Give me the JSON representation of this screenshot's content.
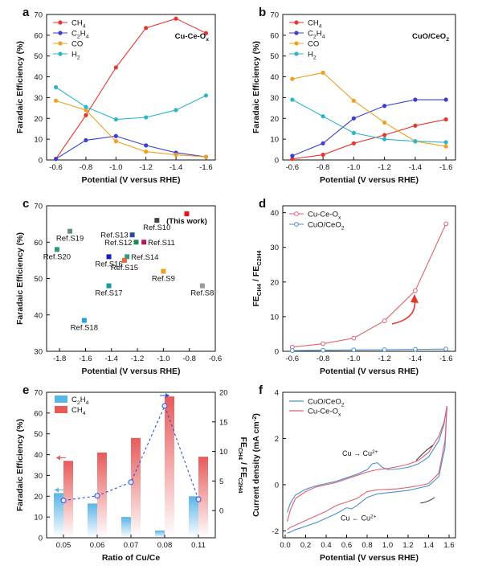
{
  "colors": {
    "ch4": "#e8342b",
    "c2h4": "#3a3fcf",
    "co": "#f0a020",
    "h2": "#2ab6c8",
    "cuceox": "#e06070",
    "cuoceo2": "#4a8fd0",
    "bar_c2h4": "#5ab4e6",
    "bar_ch4": "#e85a5a",
    "ratio_line": "#3050d8"
  },
  "chart_data": [
    {
      "id": "a",
      "type": "line",
      "panel_label": "a",
      "annotation": "Cu-Ce-Ox",
      "x": [
        -0.6,
        -0.8,
        -1.0,
        -1.2,
        -1.4,
        -1.6
      ],
      "x_ticks": [
        "-0.6",
        "-0.8",
        "-1.0",
        "-1.2",
        "-1.4",
        "-1.6"
      ],
      "y_ticks": [
        "0",
        "10",
        "20",
        "30",
        "40",
        "50",
        "60",
        "70"
      ],
      "ylim": [
        0,
        70
      ],
      "xlabel": "Potential (V versus RHE)",
      "ylabel": "Faradaic Efficiency (%)",
      "series": [
        {
          "name": "CH4",
          "color_key": "ch4",
          "values": [
            0.5,
            21.5,
            44.5,
            63.5,
            68,
            61
          ]
        },
        {
          "name": "C2H4",
          "color_key": "c2h4",
          "values": [
            0.5,
            9.5,
            11.5,
            7,
            3.5,
            1.5
          ]
        },
        {
          "name": "CO",
          "color_key": "co",
          "values": [
            28.5,
            24,
            9,
            4,
            2.5,
            1.5
          ]
        },
        {
          "name": "H2",
          "color_key": "h2",
          "values": [
            35,
            25.5,
            19.5,
            20.5,
            24,
            31
          ]
        }
      ]
    },
    {
      "id": "b",
      "type": "line",
      "panel_label": "b",
      "annotation": "CuO/CeO2",
      "x": [
        -0.6,
        -0.8,
        -1.0,
        -1.2,
        -1.4,
        -1.6
      ],
      "x_ticks": [
        "-0.6",
        "-0.8",
        "-1.0",
        "-1.2",
        "-1.4",
        "-1.6"
      ],
      "y_ticks": [
        "0",
        "10",
        "20",
        "30",
        "40",
        "50",
        "60",
        "70"
      ],
      "ylim": [
        0,
        70
      ],
      "xlabel": "Potential (V versus RHE)",
      "ylabel": "Faradaic Efficiency (%)",
      "series": [
        {
          "name": "CH4",
          "color_key": "ch4",
          "values": [
            0.5,
            2.5,
            8,
            12,
            16.5,
            19.5
          ]
        },
        {
          "name": "C2H4",
          "color_key": "c2h4",
          "values": [
            2,
            8,
            20,
            26,
            29,
            29
          ]
        },
        {
          "name": "CO",
          "color_key": "co",
          "values": [
            39,
            42,
            28.5,
            18,
            9,
            6.5
          ]
        },
        {
          "name": "H2",
          "color_key": "h2",
          "values": [
            29,
            21,
            13,
            10,
            9,
            8.5
          ]
        }
      ]
    },
    {
      "id": "c",
      "type": "scatter",
      "panel_label": "c",
      "xlim": [
        -1.9,
        -0.6
      ],
      "ylim": [
        30,
        70
      ],
      "x_ticks": [
        -1.8,
        -1.6,
        -1.4,
        -1.2,
        -1.0,
        -0.8,
        -0.6
      ],
      "x_tick_labels": [
        "-1.8",
        "-1.6",
        "-1.4",
        "-1.2",
        "-1.0",
        "-0.8",
        "-0.6"
      ],
      "y_ticks": [
        30,
        40,
        50,
        60,
        70
      ],
      "y_tick_labels": [
        "30",
        "40",
        "50",
        "60",
        "70"
      ],
      "xlabel": "Potential (V versus RHE)",
      "ylabel": "Faradaic Efficiency (%)",
      "points": [
        {
          "label": "(This work)",
          "x": -0.82,
          "y": 67.8,
          "color": "#e8141a",
          "anchor": "below-center"
        },
        {
          "label": "Ref.S10",
          "x": -1.05,
          "y": 66,
          "color": "#444444",
          "anchor": "below-center"
        },
        {
          "label": "Ref.S19",
          "x": -1.72,
          "y": 63,
          "color": "#6a8a8a",
          "anchor": "below-center"
        },
        {
          "label": "Ref.S13",
          "x": -1.24,
          "y": 62,
          "color": "#2a4aa0",
          "anchor": "left"
        },
        {
          "label": "Ref.S12",
          "x": -1.21,
          "y": 60,
          "color": "#1a8a5a",
          "anchor": "left"
        },
        {
          "label": "Ref.S11",
          "x": -1.15,
          "y": 60,
          "color": "#b01a5a",
          "anchor": "right"
        },
        {
          "label": "Ref.S20",
          "x": -1.82,
          "y": 58,
          "color": "#2a9a7a",
          "anchor": "below-center"
        },
        {
          "label": "Ref.S16",
          "x": -1.42,
          "y": 56,
          "color": "#1a1ac8",
          "anchor": "below-center"
        },
        {
          "label": "Ref.S14",
          "x": -1.28,
          "y": 56,
          "color": "#2a9a8a",
          "anchor": "right"
        },
        {
          "label": "Ref.S15",
          "x": -1.3,
          "y": 55,
          "color": "#e86a3a",
          "anchor": "below-center"
        },
        {
          "label": "Ref.S9",
          "x": -1.0,
          "y": 52,
          "color": "#f0a020",
          "anchor": "below-center"
        },
        {
          "label": "Ref.S17",
          "x": -1.42,
          "y": 48,
          "color": "#1a9a9a",
          "anchor": "below-center"
        },
        {
          "label": "Ref.S8",
          "x": -0.7,
          "y": 48,
          "color": "#9a9a9a",
          "anchor": "below-center"
        },
        {
          "label": "Ref.S18",
          "x": -1.61,
          "y": 38.5,
          "color": "#2aa0d8",
          "anchor": "below-center"
        }
      ]
    },
    {
      "id": "d",
      "type": "line",
      "panel_label": "d",
      "x": [
        -0.6,
        -0.8,
        -1.0,
        -1.2,
        -1.4,
        -1.6
      ],
      "x_ticks": [
        "-0.6",
        "-0.8",
        "-1.0",
        "-1.2",
        "-1.4",
        "-1.6"
      ],
      "y_ticks": [
        "0",
        "10",
        "20",
        "30",
        "40"
      ],
      "ylim": [
        0,
        42
      ],
      "xlabel": "Potential (V versus RHE)",
      "ylabel": "FECH4 / FEC2H4",
      "series": [
        {
          "name": "Cu-Ce-Ox",
          "color_key": "cuceox",
          "values": [
            1.2,
            2.2,
            3.8,
            8.8,
            17.5,
            36.8
          ]
        },
        {
          "name": "CuO/CeO2",
          "color_key": "cuoceo2",
          "values": [
            0.2,
            0.3,
            0.4,
            0.45,
            0.55,
            0.65
          ]
        }
      ]
    },
    {
      "id": "e",
      "type": "bar",
      "panel_label": "e",
      "categories": [
        "0.05",
        "0.06",
        "0.07",
        "0.08",
        "0.11"
      ],
      "xlabel": "Ratio of Cu/Ce",
      "ylabel": "Faradaic Efficiency (%)",
      "ylabel_right": "FECH4 / FEC2H4",
      "ylim": [
        0,
        70
      ],
      "ylim_right": [
        -4.6,
        20
      ],
      "y_ticks": [
        "0",
        "10",
        "20",
        "30",
        "40",
        "50",
        "60",
        "70"
      ],
      "y_ticks_right": [
        "0",
        "5",
        "10",
        "15",
        "20"
      ],
      "series": [
        {
          "name": "C2H4",
          "color_key": "bar_c2h4",
          "values": [
            21.5,
            16.5,
            10,
            3.5,
            20
          ]
        },
        {
          "name": "CH4",
          "color_key": "bar_ch4",
          "values": [
            37,
            41,
            48,
            68,
            39
          ]
        }
      ],
      "ratio": [
        1.7,
        2.5,
        4.8,
        17.7,
        1.9
      ]
    },
    {
      "id": "f",
      "type": "line",
      "panel_label": "f",
      "xlim": [
        0,
        1.6
      ],
      "ylim": [
        -2.3,
        4
      ],
      "x_ticks": [
        0.0,
        0.2,
        0.4,
        0.6,
        0.8,
        1.0,
        1.2,
        1.4,
        1.6
      ],
      "x_tick_labels": [
        "0.0",
        "0.2",
        "0.4",
        "0.6",
        "0.8",
        "1.0",
        "1.2",
        "1.4",
        "1.6"
      ],
      "y_ticks": [
        -2,
        0,
        2,
        4
      ],
      "y_tick_labels": [
        "-2",
        "0",
        "2",
        "4"
      ],
      "xlabel": "Potential (V versus  RHE)",
      "ylabel": "Current density (mA cm-2)",
      "annotations": {
        "oxidation": "Cu → Cu2+",
        "reduction": "Cu ← Cu2+"
      },
      "series": [
        {
          "name": "CuO/CeO2",
          "color_key": "cuoceo2",
          "x": [
            0.02,
            0.05,
            0.1,
            0.2,
            0.3,
            0.4,
            0.5,
            0.6,
            0.7,
            0.8,
            0.85,
            0.9,
            0.95,
            1.0,
            1.1,
            1.2,
            1.3,
            1.4,
            1.5,
            1.55,
            1.58,
            1.56,
            1.5,
            1.4,
            1.3,
            1.2,
            1.1,
            1.0,
            0.9,
            0.8,
            0.7,
            0.65,
            0.6,
            0.5,
            0.4,
            0.3,
            0.2,
            0.1,
            0.05,
            0.02
          ],
          "y": [
            -1.2,
            -0.8,
            -0.45,
            -0.2,
            -0.05,
            0.05,
            0.15,
            0.3,
            0.45,
            0.65,
            0.9,
            0.95,
            0.75,
            0.65,
            0.68,
            0.75,
            0.9,
            1.2,
            1.9,
            2.6,
            3.4,
            1.6,
            0.35,
            -0.05,
            -0.15,
            -0.25,
            -0.3,
            -0.35,
            -0.4,
            -0.55,
            -0.9,
            -1.05,
            -1.0,
            -1.25,
            -1.45,
            -1.65,
            -1.8,
            -1.95,
            -2.05,
            -2.1
          ]
        },
        {
          "name": "Cu-Ce-Ox",
          "color_key": "cuceox",
          "x": [
            0.02,
            0.05,
            0.1,
            0.2,
            0.3,
            0.4,
            0.5,
            0.6,
            0.7,
            0.8,
            0.9,
            1.0,
            1.1,
            1.2,
            1.3,
            1.4,
            1.5,
            1.55,
            1.58,
            1.56,
            1.5,
            1.4,
            1.3,
            1.2,
            1.1,
            1.0,
            0.9,
            0.8,
            0.7,
            0.6,
            0.5,
            0.4,
            0.3,
            0.2,
            0.1,
            0.05,
            0.02
          ],
          "y": [
            -1.6,
            -1.1,
            -0.6,
            -0.3,
            -0.1,
            0.0,
            0.1,
            0.25,
            0.4,
            0.55,
            0.65,
            0.7,
            0.78,
            0.88,
            1.05,
            1.4,
            2.1,
            2.7,
            3.4,
            1.9,
            0.5,
            0.05,
            -0.05,
            -0.12,
            -0.18,
            -0.2,
            -0.22,
            -0.3,
            -0.6,
            -0.75,
            -0.9,
            -1.15,
            -1.35,
            -1.55,
            -1.75,
            -1.85,
            -1.95
          ]
        }
      ]
    }
  ]
}
